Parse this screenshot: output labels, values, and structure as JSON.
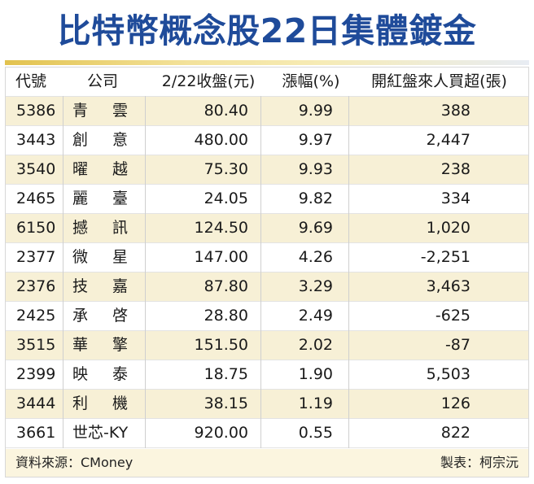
{
  "title": "比特幣概念股22日集體鍍金",
  "headers": {
    "code": "代號",
    "company": "公司",
    "close": "2/22收盤(元)",
    "change": "漲幅(%)",
    "net_buy": "開紅盤來人買超(張)"
  },
  "rows": [
    {
      "code": "5386",
      "name_a": "青",
      "name_b": "雲",
      "close": "80.40",
      "change": "9.99",
      "net_buy": "388"
    },
    {
      "code": "3443",
      "name_a": "創",
      "name_b": "意",
      "close": "480.00",
      "change": "9.97",
      "net_buy": "2,447"
    },
    {
      "code": "3540",
      "name_a": "曜",
      "name_b": "越",
      "close": "75.30",
      "change": "9.93",
      "net_buy": "238"
    },
    {
      "code": "2465",
      "name_a": "麗",
      "name_b": "臺",
      "close": "24.05",
      "change": "9.82",
      "net_buy": "334"
    },
    {
      "code": "6150",
      "name_a": "撼",
      "name_b": "訊",
      "close": "124.50",
      "change": "9.69",
      "net_buy": "1,020"
    },
    {
      "code": "2377",
      "name_a": "微",
      "name_b": "星",
      "close": "147.00",
      "change": "4.26",
      "net_buy": "-2,251"
    },
    {
      "code": "2376",
      "name_a": "技",
      "name_b": "嘉",
      "close": "87.80",
      "change": "3.29",
      "net_buy": "3,463"
    },
    {
      "code": "2425",
      "name_a": "承",
      "name_b": "啓",
      "close": "28.80",
      "change": "2.49",
      "net_buy": "-625"
    },
    {
      "code": "3515",
      "name_a": "華",
      "name_b": "擎",
      "close": "151.50",
      "change": "2.02",
      "net_buy": "-87"
    },
    {
      "code": "2399",
      "name_a": "映",
      "name_b": "泰",
      "close": "18.75",
      "change": "1.90",
      "net_buy": "5,503"
    },
    {
      "code": "3444",
      "name_a": "利",
      "name_b": "機",
      "close": "38.15",
      "change": "1.19",
      "net_buy": "126"
    },
    {
      "code": "3661",
      "name_a": "世芯-KY",
      "name_b": "",
      "close": "920.00",
      "change": "0.55",
      "net_buy": "822"
    }
  ],
  "footer": {
    "source": "資料來源：CMoney",
    "credit": "製表：柯宗沅"
  },
  "colors": {
    "title": "#1f4b9a",
    "row_shade": "#f7f0d6",
    "rule_gold": "#e2c24e"
  }
}
